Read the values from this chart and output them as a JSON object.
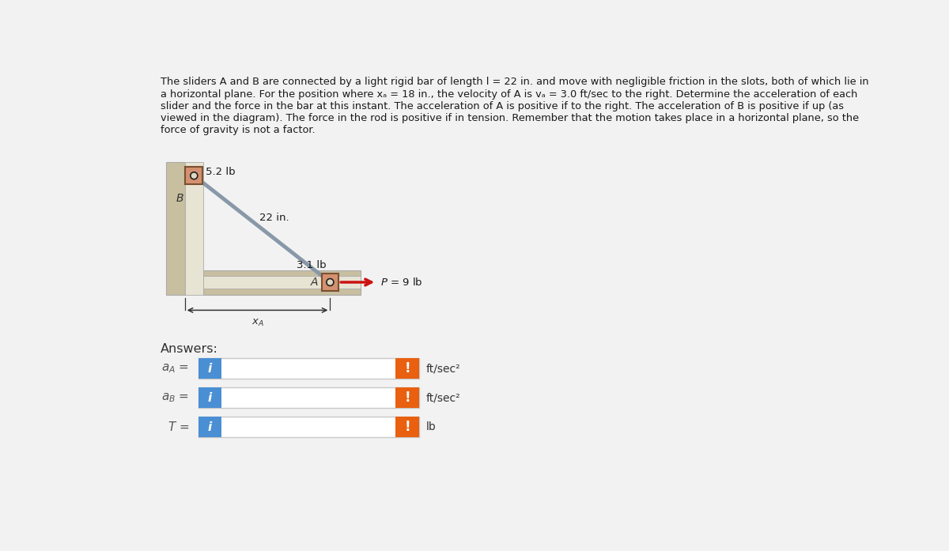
{
  "bg_color": "#f2f2f2",
  "title_lines": [
    "The sliders A and B are connected by a light rigid bar of length l = 22 in. and move with negligible friction in the slots, both of which lie in",
    "a horizontal plane. For the position where xₐ = 18 in., the velocity of A is vₐ = 3.0 ft/sec to the right. Determine the acceleration of each",
    "slider and the force in the bar at this instant. The acceleration of A is positive if to the right. The acceleration of B is positive if up (as",
    "viewed in the diagram). The force in the rod is positive if in tension. Remember that the motion takes place in a horizontal plane, so the",
    "force of gravity is not a factor."
  ],
  "wall_face_color": "#c8bfa0",
  "wall_edge_color": "#aaaaaa",
  "slot_inner_color": "#e8e4d4",
  "slot_inner_edge": "#aaaaaa",
  "slider_face_color": "#d49070",
  "slider_edge_color": "#7a5030",
  "bar_color": "#8898a8",
  "pin_outer_color": "#222222",
  "pin_inner_color": "#e0d8c0",
  "force_color": "#cc1111",
  "dim_color": "#333333",
  "label_52": "5.2 lb",
  "label_22": "22 in.",
  "label_31": "3.1 lb",
  "label_P": "P = 9 lb",
  "label_B": "B",
  "label_A": "A",
  "label_xA": "x",
  "answers_label": "Answers:",
  "row_labels_math": [
    "$a_A$ =",
    "$a_B$ =",
    "$T$ ="
  ],
  "row_units": [
    "ft/sec²",
    "ft/sec²",
    "lb"
  ],
  "blue_btn_color": "#4a8fd4",
  "orange_btn_color": "#e86010",
  "input_bg": "#ffffff",
  "input_border": "#c8c8c8"
}
